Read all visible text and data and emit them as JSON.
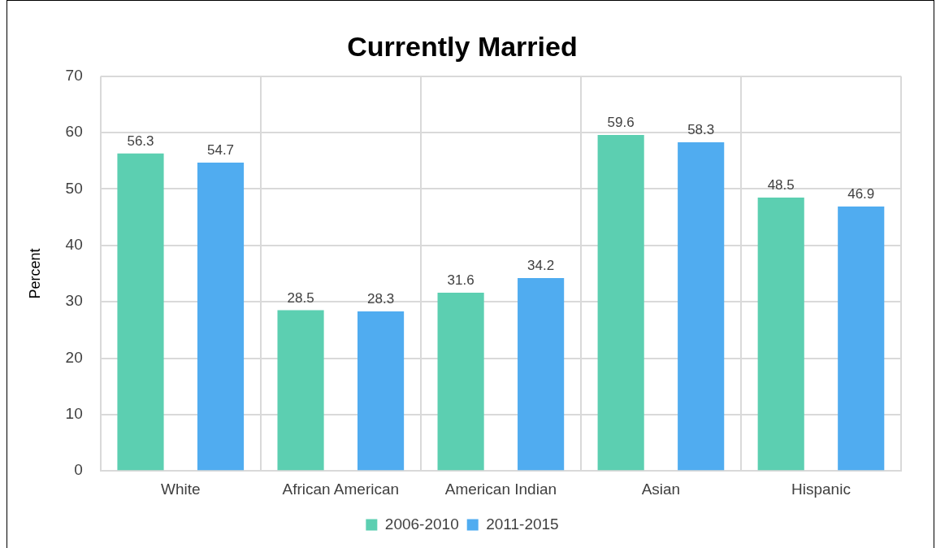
{
  "chart_data": {
    "type": "bar",
    "title": "Currently Married",
    "ylabel": "Percent",
    "categories": [
      "White",
      "African American",
      "American Indian",
      "Asian",
      "Hispanic"
    ],
    "series": [
      {
        "name": "2006-2010",
        "color": "#5ccfb1",
        "values": [
          56.3,
          28.5,
          31.6,
          59.6,
          48.5
        ]
      },
      {
        "name": "2011-2015",
        "color": "#50acf0",
        "values": [
          54.7,
          28.3,
          34.2,
          58.3,
          46.9
        ]
      }
    ],
    "ylim": [
      0,
      70
    ],
    "yticks": [
      0,
      10,
      20,
      30,
      40,
      50,
      60,
      70
    ],
    "grid": true,
    "legend": "bottom",
    "data_labels": true
  }
}
